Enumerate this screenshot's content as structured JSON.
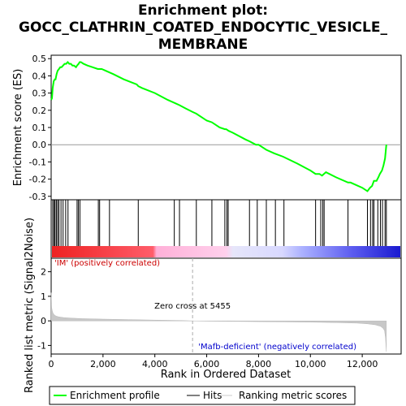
{
  "chart_data": {
    "type": "line",
    "title_lines": [
      "Enrichment plot:",
      "GOCC_CLATHRIN_COATED_ENDOCYTIC_VESICLE_",
      "MEMBRANE"
    ],
    "xlabel": "Rank in Ordered Dataset",
    "ylabel_top": "Enrichment score (ES)",
    "ylabel_bottom": "Ranked list metric (Signal2Noise)",
    "xlim": [
      0,
      13500
    ],
    "x_ticks": [
      0,
      2000,
      4000,
      6000,
      8000,
      10000,
      12000
    ],
    "x_tick_labels": [
      "0",
      "2,000",
      "4,000",
      "6,000",
      "8,000",
      "10,000",
      "12,000"
    ],
    "es_ylim": [
      -0.32,
      0.52
    ],
    "es_ticks": [
      -0.3,
      -0.2,
      -0.1,
      0.0,
      0.1,
      0.2,
      0.3,
      0.4,
      0.5
    ],
    "es_tick_labels": [
      "-0.3",
      "-0.2",
      "-0.1",
      "0.0",
      "0.1",
      "0.2",
      "0.3",
      "0.4",
      "0.5"
    ],
    "metric_ylim": [
      -1.35,
      2.55
    ],
    "metric_ticks": [
      -1,
      0,
      1,
      2
    ],
    "metric_tick_labels": [
      "-1",
      "0",
      "1",
      "2"
    ],
    "series": [
      {
        "name": "Enrichment profile",
        "color": "#00ff00",
        "x": [
          0,
          30,
          60,
          100,
          140,
          170,
          210,
          250,
          300,
          350,
          400,
          460,
          520,
          580,
          640,
          700,
          760,
          820,
          880,
          960,
          1000,
          1060,
          1100,
          1150,
          1250,
          1400,
          1600,
          1800,
          1850,
          1900,
          1950,
          2100,
          2250,
          2400,
          2800,
          3300,
          3360,
          3500,
          4000,
          4500,
          4800,
          4950,
          5200,
          5455,
          5600,
          6000,
          6200,
          6500,
          6700,
          6750,
          6850,
          7000,
          7500,
          7650,
          7900,
          8000,
          8300,
          8600,
          8950,
          9500,
          10000,
          10200,
          10350,
          10450,
          10520,
          10600,
          11000,
          11450,
          11550,
          12000,
          12200,
          12300,
          12380,
          12450,
          12550,
          12620,
          12680,
          12760,
          12820,
          12880,
          12930
        ],
        "y": [
          0.26,
          0.27,
          0.33,
          0.37,
          0.38,
          0.38,
          0.41,
          0.43,
          0.44,
          0.45,
          0.45,
          0.46,
          0.47,
          0.47,
          0.48,
          0.47,
          0.47,
          0.46,
          0.46,
          0.45,
          0.46,
          0.47,
          0.48,
          0.48,
          0.47,
          0.46,
          0.45,
          0.44,
          0.44,
          0.44,
          0.44,
          0.43,
          0.42,
          0.41,
          0.38,
          0.35,
          0.34,
          0.33,
          0.3,
          0.26,
          0.24,
          0.23,
          0.21,
          0.19,
          0.18,
          0.14,
          0.13,
          0.1,
          0.09,
          0.09,
          0.08,
          0.07,
          0.03,
          0.02,
          0.0,
          0.0,
          -0.03,
          -0.05,
          -0.07,
          -0.11,
          -0.15,
          -0.17,
          -0.17,
          -0.18,
          -0.17,
          -0.16,
          -0.19,
          -0.22,
          -0.22,
          -0.25,
          -0.27,
          -0.25,
          -0.24,
          -0.21,
          -0.21,
          -0.19,
          -0.17,
          -0.15,
          -0.12,
          -0.08,
          0.0
        ]
      }
    ],
    "hits": [
      60,
      110,
      150,
      200,
      250,
      300,
      380,
      460,
      560,
      650,
      1000,
      1050,
      1110,
      1820,
      1870,
      2250,
      3360,
      4750,
      4950,
      5600,
      6200,
      6700,
      6780,
      6830,
      7650,
      7950,
      8300,
      8650,
      8980,
      10200,
      10400,
      10480,
      10530,
      11450,
      12200,
      12320,
      12400,
      12450,
      12600,
      12700,
      12780,
      12880,
      12930
    ],
    "metric_curve": {
      "x": [
        0,
        20,
        40,
        70,
        100,
        150,
        200,
        300,
        500,
        800,
        1200,
        2000,
        3000,
        4000,
        5000,
        5455,
        6000,
        7000,
        8000,
        9000,
        10000,
        11000,
        11800,
        12200,
        12500,
        12700,
        12800,
        12860,
        12900,
        12930
      ],
      "y": [
        1.15,
        0.55,
        0.42,
        0.32,
        0.27,
        0.22,
        0.19,
        0.16,
        0.13,
        0.11,
        0.09,
        0.07,
        0.05,
        0.03,
        0.015,
        0.0,
        -0.01,
        -0.02,
        -0.03,
        -0.04,
        -0.05,
        -0.07,
        -0.09,
        -0.12,
        -0.16,
        -0.22,
        -0.3,
        -0.4,
        -0.7,
        -1.25
      ]
    },
    "zero_cross": 5455,
    "zero_cross_label": "Zero cross at 5455",
    "pos_label": "'IM' (positively correlated)",
    "neg_label": "'Mafb-deficient' (negatively correlated)",
    "pos_color": "#cc0000",
    "neg_color": "#0000cc",
    "legend": [
      "Enrichment profile",
      "Hits",
      "Ranking metric scores"
    ]
  }
}
